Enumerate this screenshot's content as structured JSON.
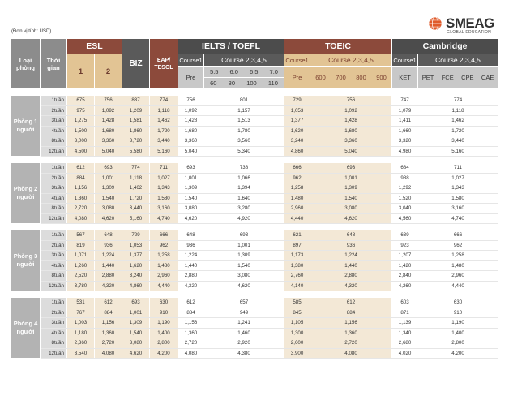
{
  "unit_note": "(Đơn vị tính: USD)",
  "logo": {
    "name": "SMEAG",
    "tagline": "GLOBAL EDUCATION"
  },
  "header": {
    "room_type": "Loại phòng",
    "duration": "Thời gian",
    "esl": "ESL",
    "esl_1": "1",
    "esl_2": "2",
    "biz": "BIZ",
    "eap": "EAP/ TESOL",
    "ielts": "IELTS / TOEFL",
    "ielts_course1": "Course1",
    "ielts_course2": "Course 2,3,4,5",
    "ielts_pre": "Pre",
    "ielts_b1": "5.5",
    "ielts_b2": "6.0",
    "ielts_b3": "6.5",
    "ielts_b4": "7.0",
    "toefl_b1": "60",
    "toefl_b2": "80",
    "toefl_b3": "100",
    "toefl_b4": "110",
    "toeic": "TOEIC",
    "toeic_course1": "Course1",
    "toeic_course2": "Course 2,3,4,5",
    "toeic_pre": "Pre",
    "toeic_b1": "600",
    "toeic_b2": "700",
    "toeic_b3": "800",
    "toeic_b4": "900",
    "camb": "Cambridge",
    "camb_course1": "Course1",
    "camb_course2": "Course 2,3,4,5",
    "camb_ket": "KET",
    "camb_pet": "PET",
    "camb_fce": "FCE",
    "camb_cpe": "CPE",
    "camb_cae": "CAE"
  },
  "groups": [
    {
      "room": "Phòng 1 người",
      "rows": [
        [
          "1tuần",
          "675",
          "756",
          "837",
          "774",
          "756",
          "801",
          "729",
          "756",
          "747",
          "774"
        ],
        [
          "2tuần",
          "975",
          "1,092",
          "1,209",
          "1,118",
          "1,092",
          "1,157",
          "1,053",
          "1,092",
          "1,079",
          "1,118"
        ],
        [
          "3tuần",
          "1,275",
          "1,428",
          "1,581",
          "1,462",
          "1,428",
          "1,513",
          "1,377",
          "1,428",
          "1,411",
          "1,462"
        ],
        [
          "4tuần",
          "1,500",
          "1,680",
          "1,860",
          "1,720",
          "1,680",
          "1,780",
          "1,620",
          "1,680",
          "1,660",
          "1,720"
        ],
        [
          "8tuần",
          "3,000",
          "3,360",
          "3,720",
          "3,440",
          "3,360",
          "3,560",
          "3,240",
          "3,360",
          "3,320",
          "3,440"
        ],
        [
          "12tuần",
          "4,500",
          "5,040",
          "5,580",
          "5,160",
          "5,040",
          "5,340",
          "4,860",
          "5,040",
          "4,980",
          "5,160"
        ]
      ]
    },
    {
      "room": "Phòng 2 người",
      "rows": [
        [
          "1tuần",
          "612",
          "693",
          "774",
          "711",
          "693",
          "738",
          "666",
          "693",
          "684",
          "711"
        ],
        [
          "2tuần",
          "884",
          "1,001",
          "1,118",
          "1,027",
          "1,001",
          "1,066",
          "962",
          "1,001",
          "988",
          "1,027"
        ],
        [
          "3tuần",
          "1,156",
          "1,309",
          "1,462",
          "1,343",
          "1,309",
          "1,394",
          "1,258",
          "1,309",
          "1,292",
          "1,343"
        ],
        [
          "4tuần",
          "1,360",
          "1,540",
          "1,720",
          "1,580",
          "1,540",
          "1,640",
          "1,480",
          "1,540",
          "1,520",
          "1,580"
        ],
        [
          "8tuần",
          "2,720",
          "3,080",
          "3,440",
          "3,160",
          "3,080",
          "3,280",
          "2,960",
          "3,080",
          "3,040",
          "3,160"
        ],
        [
          "12tuần",
          "4,080",
          "4,620",
          "5,160",
          "4,740",
          "4,620",
          "4,920",
          "4,440",
          "4,620",
          "4,560",
          "4,740"
        ]
      ]
    },
    {
      "room": "Phòng 3 người",
      "rows": [
        [
          "1tuần",
          "567",
          "648",
          "729",
          "666",
          "648",
          "693",
          "621",
          "648",
          "639",
          "666"
        ],
        [
          "2tuần",
          "819",
          "936",
          "1,053",
          "962",
          "936",
          "1,001",
          "897",
          "936",
          "923",
          "962"
        ],
        [
          "3tuần",
          "1,071",
          "1,224",
          "1,377",
          "1,258",
          "1,224",
          "1,309",
          "1,173",
          "1,224",
          "1,207",
          "1,258"
        ],
        [
          "4tuần",
          "1,260",
          "1,440",
          "1,620",
          "1,480",
          "1,440",
          "1,540",
          "1,380",
          "1,440",
          "1,420",
          "1,480"
        ],
        [
          "8tuần",
          "2,520",
          "2,880",
          "3,240",
          "2,960",
          "2,880",
          "3,080",
          "2,760",
          "2,880",
          "2,840",
          "2,960"
        ],
        [
          "12tuần",
          "3,780",
          "4,320",
          "4,860",
          "4,440",
          "4,320",
          "4,620",
          "4,140",
          "4,320",
          "4,260",
          "4,440"
        ]
      ]
    },
    {
      "room": "Phòng 4 người",
      "rows": [
        [
          "1tuần",
          "531",
          "612",
          "693",
          "630",
          "612",
          "657",
          "585",
          "612",
          "603",
          "630"
        ],
        [
          "2tuần",
          "767",
          "884",
          "1,001",
          "910",
          "884",
          "949",
          "845",
          "884",
          "871",
          "910"
        ],
        [
          "3tuần",
          "1,003",
          "1,156",
          "1,309",
          "1,190",
          "1,156",
          "1,241",
          "1,105",
          "1,156",
          "1,139",
          "1,190"
        ],
        [
          "4tuần",
          "1,180",
          "1,360",
          "1,540",
          "1,400",
          "1,360",
          "1,460",
          "1,300",
          "1,360",
          "1,340",
          "1,400"
        ],
        [
          "8tuần",
          "2,360",
          "2,720",
          "3,080",
          "2,800",
          "2,720",
          "2,920",
          "2,600",
          "2,720",
          "2,680",
          "2,800"
        ],
        [
          "12tuần",
          "3,540",
          "4,080",
          "4,620",
          "4,200",
          "4,080",
          "4,380",
          "3,900",
          "4,080",
          "4,020",
          "4,200"
        ]
      ]
    }
  ]
}
